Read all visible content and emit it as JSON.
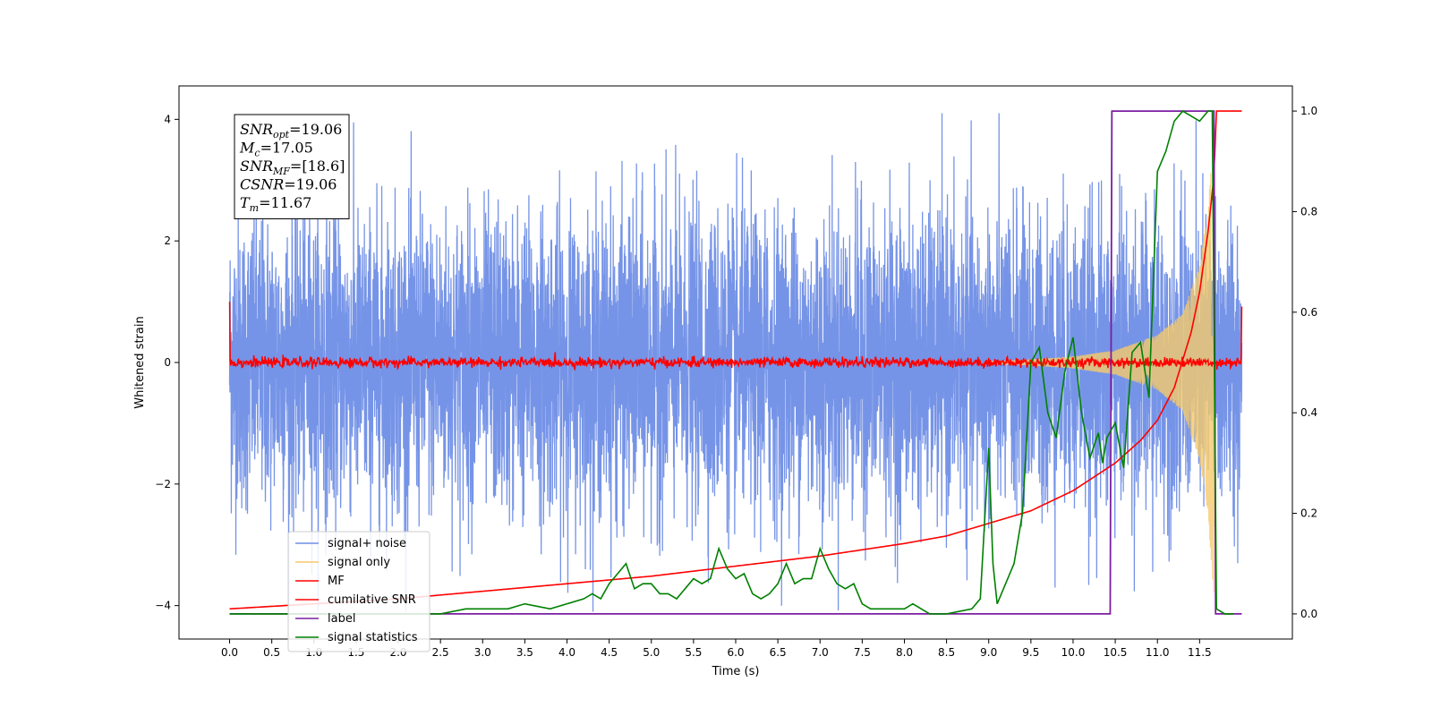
{
  "chart_data": {
    "type": "line",
    "xlabel": "Time (s)",
    "ylabel_left": "Whitened strain",
    "xlim": [
      -0.6,
      12.6
    ],
    "ylim_left": [
      -4.55,
      4.55
    ],
    "ylim_right": [
      -0.05,
      1.05
    ],
    "x_ticks": [
      "0.0",
      "0.5",
      "1.0",
      "1.5",
      "2.0",
      "2.5",
      "3.0",
      "3.5",
      "4.0",
      "4.5",
      "5.0",
      "5.5",
      "6.0",
      "6.5",
      "7.0",
      "7.5",
      "8.0",
      "8.5",
      "9.0",
      "9.5",
      "10.0",
      "10.5",
      "11.0",
      "11.5"
    ],
    "y_ticks_left": [
      "−4",
      "−2",
      "0",
      "2",
      "4"
    ],
    "y_ticks_right": [
      "0.0",
      "0.2",
      "0.4",
      "0.6",
      "0.8",
      "1.0"
    ],
    "grid": false,
    "legend_position": "lower-left",
    "annotation": [
      {
        "base": "SNR",
        "sub": "opt",
        "value": "=19.06"
      },
      {
        "base": "M",
        "sub": "c",
        "value": "=17.05"
      },
      {
        "base": "SNR",
        "sub": "MF",
        "value": "=[18.6]"
      },
      {
        "base": "CSNR",
        "sub": "",
        "value": "=19.06"
      },
      {
        "base": "T",
        "sub": "m",
        "value": "=11.67"
      }
    ],
    "series": [
      {
        "name": "signal+ noise",
        "color": "#6f8ee6",
        "axis": "left",
        "x_range": [
          0.0,
          12.0
        ],
        "amplitude_envelope": {
          "x": [
            0,
            12
          ],
          "min": [
            -4.1,
            -4.1
          ],
          "max": [
            4.1,
            4.1
          ]
        }
      },
      {
        "name": "signal only",
        "color": "#f5c96b",
        "axis": "left",
        "x_range": [
          9.0,
          11.67
        ],
        "envelope": {
          "x": [
            9.0,
            9.5,
            10.0,
            10.5,
            11.0,
            11.3,
            11.5,
            11.6,
            11.67
          ],
          "amp": [
            0.02,
            0.05,
            0.1,
            0.2,
            0.45,
            0.8,
            1.6,
            2.5,
            3.9
          ]
        }
      },
      {
        "name": "MF",
        "color": "#ff0000",
        "axis": "left",
        "x_range": [
          0.0,
          12.0
        ],
        "noise_amplitude": 0.12,
        "edge_values": {
          "start": 1.0,
          "end": 0.92
        }
      },
      {
        "name": "cumilative SNR",
        "color": "#ff0000",
        "axis": "right",
        "x": [
          0.0,
          1.0,
          2.0,
          3.0,
          4.0,
          5.0,
          6.0,
          7.0,
          8.0,
          8.5,
          9.0,
          9.5,
          10.0,
          10.5,
          10.8,
          11.0,
          11.2,
          11.4,
          11.5,
          11.6,
          11.67,
          11.7,
          12.0
        ],
        "y": [
          0.01,
          0.02,
          0.03,
          0.045,
          0.06,
          0.075,
          0.095,
          0.115,
          0.14,
          0.155,
          0.18,
          0.205,
          0.245,
          0.3,
          0.345,
          0.385,
          0.45,
          0.56,
          0.64,
          0.76,
          0.87,
          1.0,
          1.0
        ]
      },
      {
        "name": "label",
        "color": "#7b1ea2",
        "axis": "right",
        "x": [
          0.0,
          10.44,
          10.46,
          11.67,
          11.69,
          12.0
        ],
        "y": [
          0.0,
          0.0,
          1.0,
          1.0,
          0.0,
          0.0
        ]
      },
      {
        "name": "signal statistics",
        "color": "#008000",
        "axis": "right",
        "x": [
          0.0,
          0.5,
          1.0,
          1.5,
          2.0,
          2.5,
          2.8,
          3.0,
          3.3,
          3.5,
          3.8,
          4.0,
          4.2,
          4.3,
          4.4,
          4.5,
          4.6,
          4.7,
          4.8,
          4.9,
          5.0,
          5.1,
          5.2,
          5.3,
          5.4,
          5.5,
          5.6,
          5.7,
          5.8,
          5.9,
          6.0,
          6.1,
          6.2,
          6.3,
          6.4,
          6.5,
          6.6,
          6.7,
          6.8,
          6.9,
          7.0,
          7.1,
          7.2,
          7.3,
          7.4,
          7.5,
          7.6,
          7.7,
          7.8,
          7.9,
          8.0,
          8.1,
          8.2,
          8.3,
          8.5,
          8.8,
          8.9,
          9.0,
          9.05,
          9.1,
          9.2,
          9.3,
          9.4,
          9.5,
          9.6,
          9.7,
          9.8,
          9.9,
          10.0,
          10.1,
          10.2,
          10.3,
          10.35,
          10.4,
          10.5,
          10.6,
          10.7,
          10.8,
          10.9,
          11.0,
          11.1,
          11.2,
          11.3,
          11.4,
          11.5,
          11.6,
          11.65,
          11.7,
          11.8,
          11.9
        ],
        "y": [
          0.0,
          0.0,
          0.0,
          0.0,
          0.0,
          0.0,
          0.01,
          0.01,
          0.01,
          0.02,
          0.01,
          0.02,
          0.03,
          0.04,
          0.03,
          0.06,
          0.08,
          0.1,
          0.05,
          0.06,
          0.06,
          0.04,
          0.04,
          0.03,
          0.05,
          0.07,
          0.06,
          0.07,
          0.13,
          0.09,
          0.07,
          0.08,
          0.04,
          0.03,
          0.04,
          0.06,
          0.1,
          0.06,
          0.07,
          0.07,
          0.13,
          0.09,
          0.06,
          0.05,
          0.06,
          0.02,
          0.01,
          0.01,
          0.01,
          0.01,
          0.01,
          0.02,
          0.01,
          0.0,
          0.0,
          0.01,
          0.03,
          0.33,
          0.1,
          0.02,
          0.06,
          0.1,
          0.2,
          0.5,
          0.53,
          0.4,
          0.35,
          0.48,
          0.55,
          0.4,
          0.31,
          0.36,
          0.3,
          0.35,
          0.38,
          0.29,
          0.52,
          0.54,
          0.43,
          0.88,
          0.92,
          0.98,
          1.0,
          0.99,
          0.98,
          1.0,
          1.0,
          0.01,
          0.0,
          0.0
        ]
      }
    ]
  }
}
